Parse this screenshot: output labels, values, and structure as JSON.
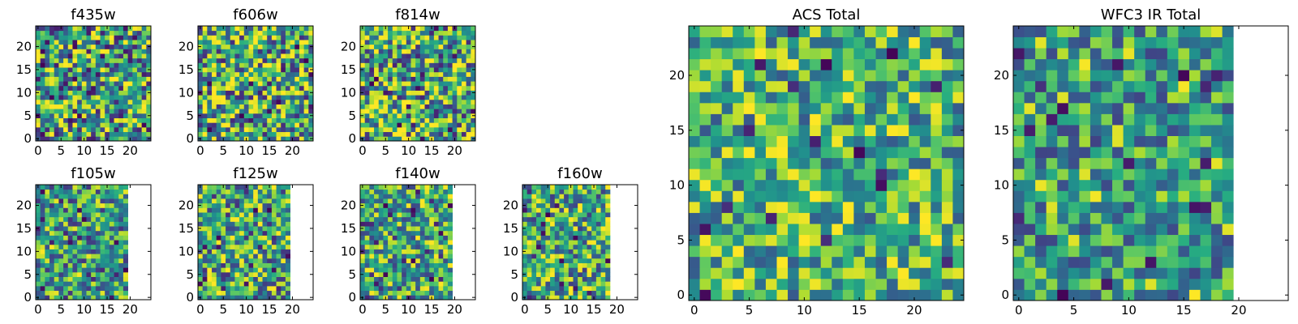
{
  "chart_data": [
    {
      "type": "heatmap",
      "title": "f435w",
      "xticks": [
        0,
        5,
        10,
        15,
        20
      ],
      "yticks": [
        0,
        5,
        10,
        15,
        20
      ],
      "grid": [
        25,
        25
      ],
      "data_cols": 25,
      "colormap": "viridis",
      "seed": 11,
      "bias": 0.55,
      "contrast": 1.0
    },
    {
      "type": "heatmap",
      "title": "f606w",
      "xticks": [
        0,
        5,
        10,
        15,
        20
      ],
      "yticks": [
        0,
        5,
        10,
        15,
        20
      ],
      "grid": [
        25,
        25
      ],
      "data_cols": 25,
      "colormap": "viridis",
      "seed": 23,
      "bias": 0.62,
      "contrast": 1.0
    },
    {
      "type": "heatmap",
      "title": "f814w",
      "xticks": [
        0,
        5,
        10,
        15,
        20
      ],
      "yticks": [
        0,
        5,
        10,
        15,
        20
      ],
      "grid": [
        25,
        25
      ],
      "data_cols": 25,
      "colormap": "viridis",
      "seed": 37,
      "bias": 0.6,
      "contrast": 1.0
    },
    {
      "type": "heatmap",
      "title": "f105w",
      "xticks": [
        0,
        5,
        10,
        15,
        20
      ],
      "yticks": [
        0,
        5,
        10,
        15,
        20
      ],
      "grid": [
        25,
        25
      ],
      "data_cols": 20,
      "colormap": "viridis",
      "seed": 41,
      "bias": 0.55,
      "contrast": 0.8
    },
    {
      "type": "heatmap",
      "title": "f125w",
      "xticks": [
        0,
        5,
        10,
        15,
        20
      ],
      "yticks": [
        0,
        5,
        10,
        15,
        20
      ],
      "grid": [
        25,
        25
      ],
      "data_cols": 20,
      "colormap": "viridis",
      "seed": 53,
      "bias": 0.58,
      "contrast": 0.9
    },
    {
      "type": "heatmap",
      "title": "f140w",
      "xticks": [
        0,
        5,
        10,
        15,
        20
      ],
      "yticks": [
        0,
        5,
        10,
        15,
        20
      ],
      "grid": [
        25,
        25
      ],
      "data_cols": 20,
      "colormap": "viridis",
      "seed": 67,
      "bias": 0.6,
      "contrast": 0.8
    },
    {
      "type": "heatmap",
      "title": "f160w",
      "xticks": [
        0,
        5,
        10,
        15,
        20
      ],
      "yticks": [
        0,
        5,
        10,
        15,
        20
      ],
      "grid": [
        25,
        25
      ],
      "data_cols": 19,
      "colormap": "viridis",
      "seed": 79,
      "bias": 0.6,
      "contrast": 0.85
    },
    {
      "type": "heatmap",
      "title": "ACS Total",
      "xticks": [
        0,
        5,
        10,
        15,
        20
      ],
      "yticks": [
        0,
        5,
        10,
        15,
        20
      ],
      "grid": [
        25,
        25
      ],
      "data_cols": 25,
      "colormap": "viridis",
      "seed": 97,
      "bias": 0.65,
      "contrast": 0.75
    },
    {
      "type": "heatmap",
      "title": "WFC3 IR Total",
      "xticks": [
        0,
        5,
        10,
        15,
        20
      ],
      "yticks": [
        0,
        5,
        10,
        15,
        20
      ],
      "grid": [
        25,
        25
      ],
      "data_cols": 20,
      "colormap": "viridis",
      "seed": 101,
      "bias": 0.55,
      "contrast": 0.7
    }
  ]
}
